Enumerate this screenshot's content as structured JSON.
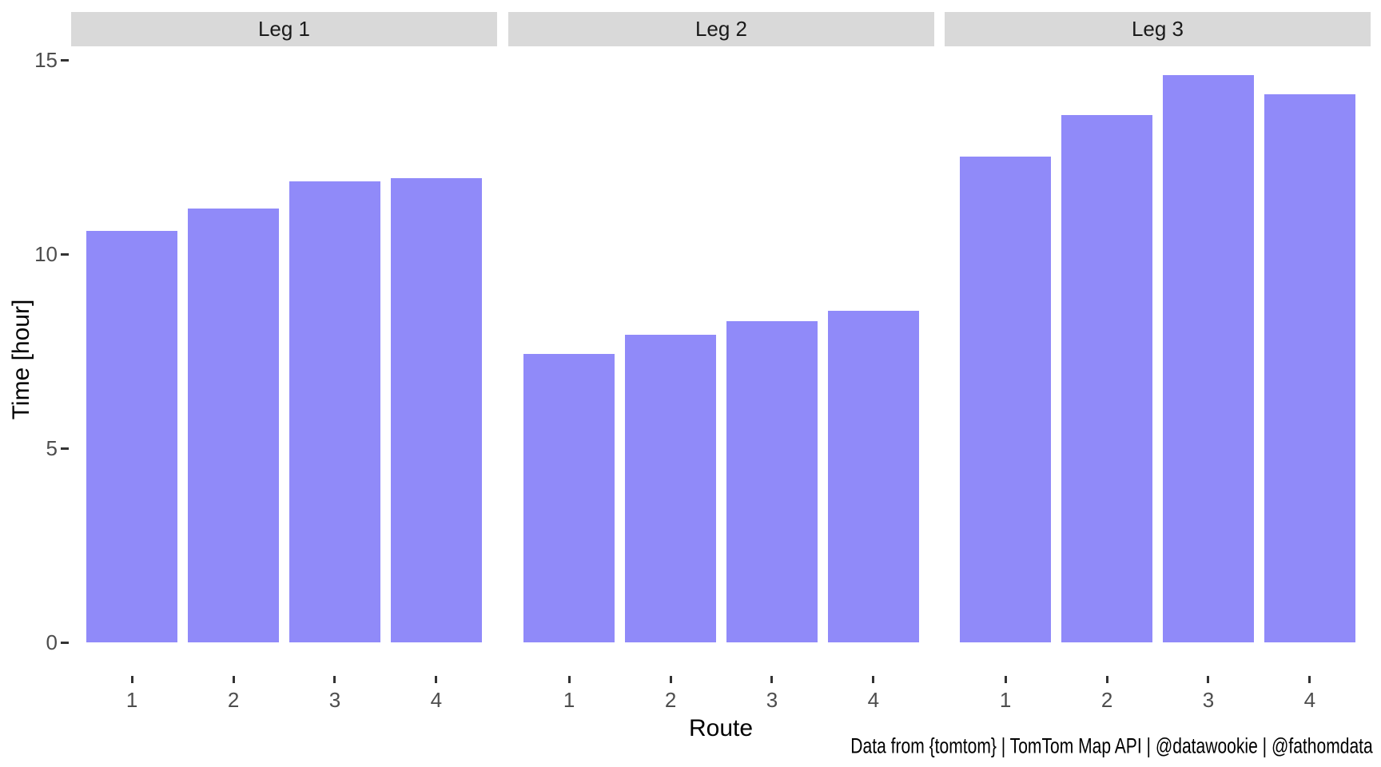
{
  "chart_data": {
    "type": "bar",
    "title": "",
    "xlabel": "Route",
    "ylabel": "Time [hour]",
    "caption": "Data from {tomtom} | TomTom Map API | @datawookie | @fathomdata",
    "categories": [
      "1",
      "2",
      "3",
      "4"
    ],
    "facets": [
      {
        "label": "Leg 1",
        "values": [
          10.6,
          11.17,
          11.87,
          11.95
        ]
      },
      {
        "label": "Leg 2",
        "values": [
          7.43,
          7.92,
          8.27,
          8.54
        ]
      },
      {
        "label": "Leg 3",
        "values": [
          12.51,
          13.58,
          14.61,
          14.12
        ]
      }
    ],
    "y_ticks": [
      0,
      5,
      10,
      15
    ],
    "ylim": [
      0,
      15.35
    ],
    "grid": "off",
    "legend": "none",
    "colors": {
      "bar_fill": "#908af9",
      "strip_background": "#d9d9d9",
      "strip_text": "#1a1a1a",
      "axis_text": "#4d4d4d",
      "tick_mark": "#333333",
      "title_text": "#000000",
      "panel_background": "#ffffff"
    }
  }
}
